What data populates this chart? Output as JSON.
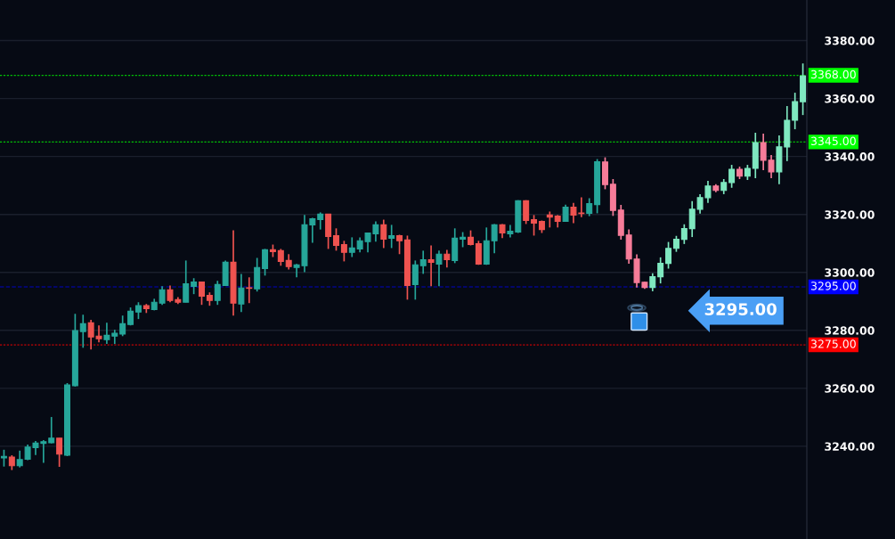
{
  "chart_data": {
    "type": "candlestick",
    "categories": [
      null,
      null,
      null,
      null,
      null,
      null,
      null,
      null,
      null,
      null,
      null,
      null,
      null,
      null,
      null,
      null,
      null,
      null,
      null,
      null,
      null,
      null,
      null,
      null,
      null,
      null,
      null,
      null,
      null,
      null,
      null,
      null,
      null,
      null,
      null,
      null,
      null,
      null,
      null,
      null,
      null,
      null,
      null,
      null,
      null,
      null,
      null,
      null,
      null,
      null,
      null,
      null,
      null,
      null,
      null,
      null,
      null,
      null,
      null,
      null,
      null,
      null,
      null,
      null,
      null,
      null,
      null,
      null,
      null,
      null,
      null,
      null,
      null,
      null,
      null,
      null,
      null,
      null,
      null,
      null,
      null,
      null,
      null,
      null,
      null,
      null,
      null,
      null,
      null,
      null,
      null,
      null,
      null,
      null,
      null,
      null,
      null,
      null,
      null,
      null,
      null,
      null
    ],
    "ohlc": [
      [
        3236.0,
        3238.8,
        3233.0,
        3236.5
      ],
      [
        3236.3,
        3236.9,
        3231.8,
        3233.3
      ],
      [
        3233.3,
        3238.5,
        3232.7,
        3235.4
      ],
      [
        3235.5,
        3240.6,
        3235.2,
        3239.7
      ],
      [
        3239.5,
        3241.8,
        3237.0,
        3241.1
      ],
      [
        3241.0,
        3242.1,
        3234.3,
        3241.6
      ],
      [
        3241.2,
        3250.1,
        3241.0,
        3242.8
      ],
      [
        3242.8,
        3242.8,
        3232.9,
        3237.3
      ],
      [
        3236.9,
        3261.8,
        3236.6,
        3261.2
      ],
      [
        3260.9,
        3285.7,
        3260.6,
        3279.9
      ],
      [
        3279.6,
        3285.4,
        3274.0,
        3282.3
      ],
      [
        3282.6,
        3283.6,
        3273.4,
        3277.7
      ],
      [
        3278.0,
        3281.7,
        3275.9,
        3277.1
      ],
      [
        3276.8,
        3282.6,
        3275.3,
        3278.3
      ],
      [
        3278.0,
        3280.2,
        3275.3,
        3279.0
      ],
      [
        3278.7,
        3285.1,
        3278.0,
        3282.3
      ],
      [
        3282.0,
        3287.9,
        3281.7,
        3286.6
      ],
      [
        3286.3,
        3289.7,
        3283.9,
        3288.5
      ],
      [
        3288.5,
        3289.1,
        3286.0,
        3287.5
      ],
      [
        3287.2,
        3290.9,
        3286.9,
        3289.7
      ],
      [
        3289.4,
        3295.2,
        3288.8,
        3294.0
      ],
      [
        3294.0,
        3295.5,
        3289.7,
        3290.3
      ],
      [
        3290.6,
        3291.5,
        3289.1,
        3289.7
      ],
      [
        3289.7,
        3304.1,
        3289.7,
        3296.1
      ],
      [
        3295.2,
        3298.0,
        3292.5,
        3296.7
      ],
      [
        3296.7,
        3296.7,
        3288.8,
        3291.8
      ],
      [
        3292.1,
        3293.1,
        3288.5,
        3290.3
      ],
      [
        3290.3,
        3297.1,
        3288.8,
        3295.8
      ],
      [
        3295.5,
        3304.1,
        3295.5,
        3303.5
      ],
      [
        3303.5,
        3314.5,
        3285.1,
        3289.4
      ],
      [
        3289.1,
        3299.5,
        3286.3,
        3294.6
      ],
      [
        3294.7,
        3298.3,
        3289.4,
        3294.5
      ],
      [
        3294.3,
        3305.0,
        3293.4,
        3301.7
      ],
      [
        3301.3,
        3308.1,
        3298.9,
        3307.8
      ],
      [
        3307.8,
        3309.6,
        3305.3,
        3307.2
      ],
      [
        3307.5,
        3308.1,
        3302.3,
        3303.8
      ],
      [
        3304.1,
        3306.3,
        3301.0,
        3302.0
      ],
      [
        3301.7,
        3302.9,
        3298.3,
        3302.6
      ],
      [
        3302.3,
        3319.8,
        3300.1,
        3316.4
      ],
      [
        3316.4,
        3318.8,
        3310.2,
        3318.5
      ],
      [
        3318.2,
        3320.7,
        3314.8,
        3320.1
      ],
      [
        3320.1,
        3320.1,
        3308.1,
        3312.4
      ],
      [
        3312.7,
        3315.2,
        3307.5,
        3309.3
      ],
      [
        3309.6,
        3310.9,
        3303.8,
        3306.9
      ],
      [
        3306.9,
        3312.1,
        3305.3,
        3308.4
      ],
      [
        3308.1,
        3312.1,
        3306.9,
        3310.9
      ],
      [
        3310.6,
        3313.6,
        3306.9,
        3313.6
      ],
      [
        3313.3,
        3317.6,
        3310.6,
        3316.4
      ],
      [
        3316.4,
        3318.2,
        3308.4,
        3311.5
      ],
      [
        3311.8,
        3316.4,
        3308.4,
        3312.7
      ],
      [
        3312.7,
        3313.0,
        3306.3,
        3310.9
      ],
      [
        3311.2,
        3312.7,
        3290.6,
        3295.5
      ],
      [
        3295.8,
        3304.1,
        3290.6,
        3302.6
      ],
      [
        3302.3,
        3307.5,
        3299.5,
        3304.4
      ],
      [
        3304.4,
        3309.3,
        3295.2,
        3303.5
      ],
      [
        3302.9,
        3307.5,
        3295.2,
        3306.3
      ],
      [
        3306.3,
        3307.8,
        3301.7,
        3304.4
      ],
      [
        3304.1,
        3315.2,
        3303.2,
        3311.8
      ],
      [
        3311.5,
        3313.9,
        3308.7,
        3312.1
      ],
      [
        3312.1,
        3314.5,
        3309.3,
        3309.6
      ],
      [
        3309.9,
        3310.9,
        3302.6,
        3302.9
      ],
      [
        3302.9,
        3315.5,
        3302.6,
        3310.9
      ],
      [
        3310.9,
        3316.7,
        3306.6,
        3316.4
      ],
      [
        3316.4,
        3316.7,
        3311.8,
        3313.6
      ],
      [
        3313.3,
        3316.4,
        3312.1,
        3314.2
      ],
      [
        3313.9,
        3324.9,
        3313.6,
        3324.7
      ],
      [
        3324.7,
        3324.9,
        3316.7,
        3317.9
      ],
      [
        3318.2,
        3319.8,
        3312.7,
        3317.0
      ],
      [
        3317.6,
        3317.9,
        3313.6,
        3314.8
      ],
      [
        3319.8,
        3321.0,
        3315.5,
        3319.1
      ],
      [
        3319.4,
        3319.8,
        3315.5,
        3317.6
      ],
      [
        3317.6,
        3323.4,
        3317.6,
        3322.5
      ],
      [
        3322.5,
        3324.0,
        3317.0,
        3319.8
      ],
      [
        3320.5,
        3325.9,
        3319.1,
        3320.3
      ],
      [
        3320.4,
        3325.6,
        3319.4,
        3323.7
      ],
      [
        3323.4,
        3339.1,
        3320.4,
        3338.2
      ],
      [
        3338.1,
        3339.7,
        3328.7,
        3330.3
      ],
      [
        3330.4,
        3332.2,
        3319.5,
        3321.4
      ],
      [
        3321.5,
        3323.3,
        3311.3,
        3312.8
      ],
      [
        3312.9,
        3314.8,
        3303.0,
        3304.6
      ],
      [
        3304.6,
        3306.2,
        3294.8,
        3296.5
      ],
      [
        3296.6,
        3296.8,
        3294.3,
        3294.8
      ],
      [
        3294.8,
        3299.7,
        3293.5,
        3298.5
      ],
      [
        3298.5,
        3305.2,
        3296.2,
        3303.1
      ],
      [
        3303.1,
        3310.5,
        3301.3,
        3308.3
      ],
      [
        3308.3,
        3312.6,
        3307.1,
        3311.4
      ],
      [
        3311.4,
        3316.6,
        3309.8,
        3315.1
      ],
      [
        3315.1,
        3324.6,
        3312.2,
        3321.8
      ],
      [
        3321.8,
        3327.0,
        3320.3,
        3325.8
      ],
      [
        3325.8,
        3331.6,
        3324.0,
        3329.8
      ],
      [
        3329.8,
        3330.4,
        3327.7,
        3328.3
      ],
      [
        3328.3,
        3332.2,
        3327.0,
        3331.0
      ],
      [
        3331.0,
        3337.1,
        3329.2,
        3335.6
      ],
      [
        3335.6,
        3336.5,
        3332.2,
        3333.2
      ],
      [
        3333.2,
        3337.1,
        3331.9,
        3335.9
      ],
      [
        3335.9,
        3348.2,
        3332.5,
        3344.8
      ],
      [
        3344.8,
        3347.9,
        3335.3,
        3338.7
      ],
      [
        3338.7,
        3340.5,
        3332.5,
        3334.7
      ],
      [
        3334.7,
        3347.3,
        3330.4,
        3343.3
      ],
      [
        3343.3,
        3357.4,
        3338.4,
        3352.5
      ],
      [
        3352.5,
        3362.0,
        3349.4,
        3358.9
      ],
      [
        3358.9,
        3372.1,
        3354.3,
        3367.8
      ]
    ],
    "colors": [
      "#26a69a",
      "#ef5350",
      "#26a69a",
      "#26a69a",
      "#26a69a",
      "#26a69a",
      "#26a69a",
      "#ef5350",
      "#26a69a",
      "#26a69a",
      "#26a69a",
      "#ef5350",
      "#ef5350",
      "#26a69a",
      "#26a69a",
      "#26a69a",
      "#26a69a",
      "#26a69a",
      "#ef5350",
      "#26a69a",
      "#26a69a",
      "#ef5350",
      "#ef5350",
      "#26a69a",
      "#26a69a",
      "#ef5350",
      "#ef5350",
      "#26a69a",
      "#26a69a",
      "#ef5350",
      "#26a69a",
      "#ef5350",
      "#26a69a",
      "#26a69a",
      "#ef5350",
      "#ef5350",
      "#ef5350",
      "#26a69a",
      "#26a69a",
      "#26a69a",
      "#26a69a",
      "#ef5350",
      "#ef5350",
      "#ef5350",
      "#26a69a",
      "#26a69a",
      "#26a69a",
      "#26a69a",
      "#ef5350",
      "#26a69a",
      "#ef5350",
      "#ef5350",
      "#26a69a",
      "#26a69a",
      "#ef5350",
      "#26a69a",
      "#ef5350",
      "#26a69a",
      "#26a69a",
      "#ef5350",
      "#ef5350",
      "#26a69a",
      "#26a69a",
      "#ef5350",
      "#26a69a",
      "#26a69a",
      "#ef5350",
      "#ef5350",
      "#ef5350",
      "#ef5350",
      "#ef5350",
      "#26a69a",
      "#ef5350",
      "#ef5350",
      "#26a69a",
      "#26a69a",
      "#f77c99",
      "#f77c99",
      "#f77c99",
      "#f77c99",
      "#f77c99",
      "#f77c99",
      "#7fe8c0",
      "#7fe8c0",
      "#7fe8c0",
      "#7fe8c0",
      "#7fe8c0",
      "#7fe8c0",
      "#7fe8c0",
      "#7fe8c0",
      "#f77c99",
      "#7fe8c0",
      "#7fe8c0",
      "#f77c99",
      "#7fe8c0",
      "#7fe8c0",
      "#f77c99",
      "#f77c99",
      "#7fe8c0",
      "#7fe8c0",
      "#7fe8c0",
      "#7fe8c0"
    ],
    "ylim": [
      3208,
      3394
    ],
    "yticks": [
      {
        "value": 3240,
        "label": "3240.00"
      },
      {
        "value": 3260,
        "label": "3260.00"
      },
      {
        "value": 3280,
        "label": "3280.00"
      },
      {
        "value": 3300,
        "label": "3300.00"
      },
      {
        "value": 3320,
        "label": "3320.00"
      },
      {
        "value": 3340,
        "label": "3340.00"
      },
      {
        "value": 3360,
        "label": "3360.00"
      },
      {
        "value": 3380,
        "label": "3380.00"
      }
    ],
    "ref_lines": [
      {
        "axis": "y",
        "value": 3368,
        "label": "3368.00",
        "color": "#00ff00",
        "line_style": "dotted"
      },
      {
        "axis": "y",
        "value": 3345,
        "label": "3345.00",
        "color": "#00ff00",
        "line_style": "dotted"
      },
      {
        "axis": "y",
        "value": 3295,
        "label": "3295.00",
        "color": "#0000ff",
        "line_style": "dashed"
      },
      {
        "axis": "y",
        "value": 3275,
        "label": "3275.00",
        "color": "#ff0000",
        "line_style": "dotted"
      }
    ],
    "annotations": [
      {
        "text": "3295.00",
        "y": 3294.3
      }
    ],
    "grid": "y"
  }
}
